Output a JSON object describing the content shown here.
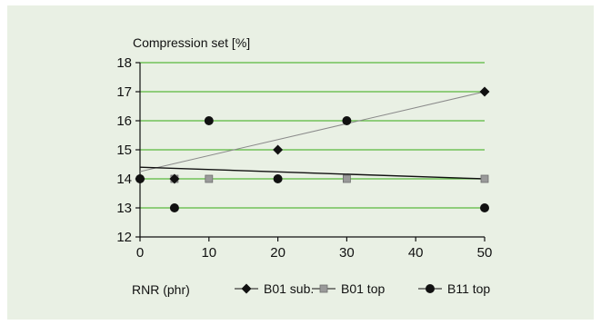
{
  "colors": {
    "panel_bg": "#e9f0e4",
    "grid": "#5ab83c",
    "axis": "#111111",
    "trend_black": "#111111",
    "trend_gray": "#8a8a8a"
  },
  "chart_data": {
    "type": "scatter",
    "title": "",
    "ylabel": "Compression set [%]",
    "xlabel": "RNR (phr)",
    "xlim": [
      0,
      50
    ],
    "ylim": [
      12,
      18
    ],
    "x_ticks": [
      0,
      10,
      20,
      30,
      40,
      50
    ],
    "y_ticks": [
      12,
      13,
      14,
      15,
      16,
      17,
      18
    ],
    "grid": "horizontal",
    "legend_position": "bottom",
    "series": [
      {
        "name": "B01 sub.",
        "marker": "diamond",
        "color": "#111111",
        "legend_glyph": "-◆-",
        "points": [
          [
            0,
            14
          ],
          [
            5,
            14
          ],
          [
            20,
            15
          ],
          [
            50,
            17
          ]
        ]
      },
      {
        "name": "B01 top",
        "marker": "square",
        "color": "#9a9a9a",
        "legend_glyph": "-▪-",
        "points": [
          [
            5,
            14
          ],
          [
            10,
            14
          ],
          [
            30,
            14
          ],
          [
            50,
            14
          ]
        ]
      },
      {
        "name": "B11 top",
        "marker": "circle",
        "color": "#111111",
        "legend_glyph": "-●-",
        "points": [
          [
            0,
            14
          ],
          [
            5,
            13
          ],
          [
            10,
            16
          ],
          [
            20,
            14
          ],
          [
            30,
            16
          ],
          [
            50,
            13
          ]
        ]
      }
    ],
    "trendlines": [
      {
        "color": "#8a8a8a",
        "points": [
          [
            0,
            14.25
          ],
          [
            50,
            17
          ]
        ]
      },
      {
        "color": "#111111",
        "points": [
          [
            0,
            14.4
          ],
          [
            50,
            14
          ]
        ]
      }
    ]
  }
}
